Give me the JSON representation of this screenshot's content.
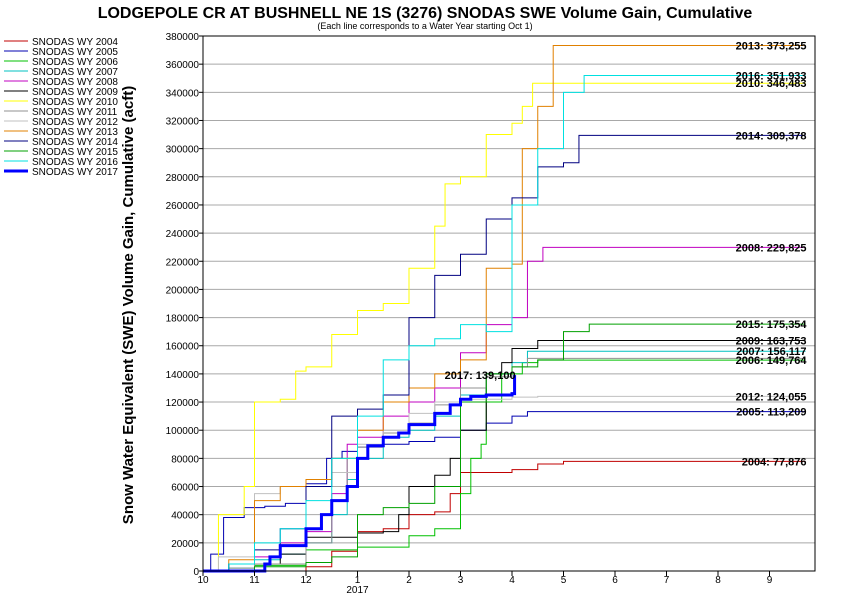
{
  "chart_data": {
    "type": "line",
    "title": "LODGEPOLE CR AT BUSHNELL NE 1S (3276) SNODAS SWE Volume Gain, Cumulative",
    "subtitle": "(Each line corresponds to a Water Year starting Oct 1)",
    "ylabel": "Snow Water Equivalent (SWE) Volume Gain, Cumulative (acft)",
    "xlabel": "",
    "ylim": [
      0,
      380000
    ],
    "yticks": [
      0,
      20000,
      40000,
      60000,
      80000,
      100000,
      120000,
      140000,
      160000,
      180000,
      200000,
      220000,
      240000,
      260000,
      280000,
      300000,
      320000,
      340000,
      360000,
      380000
    ],
    "xlim": [
      0,
      12
    ],
    "xticks": [
      {
        "x": 0,
        "label": "10"
      },
      {
        "x": 1,
        "label": "11"
      },
      {
        "x": 2,
        "label": "12"
      },
      {
        "x": 3,
        "label": "1"
      },
      {
        "x": 4,
        "label": "2"
      },
      {
        "x": 5,
        "label": "3"
      },
      {
        "x": 6,
        "label": "4"
      },
      {
        "x": 7,
        "label": "5"
      },
      {
        "x": 8,
        "label": "6"
      },
      {
        "x": 9,
        "label": "7"
      },
      {
        "x": 10,
        "label": "8"
      },
      {
        "x": 11,
        "label": "9"
      }
    ],
    "year_label": {
      "x": 3,
      "label": "2017"
    },
    "grid": "horizontal",
    "legend_position": "left",
    "series": [
      {
        "name": "SNODAS WY 2004",
        "color": "#c00000",
        "width": 1,
        "points": [
          [
            0,
            0
          ],
          [
            1,
            0
          ],
          [
            2,
            3000
          ],
          [
            2.5,
            14000
          ],
          [
            3,
            28000
          ],
          [
            3.5,
            30000
          ],
          [
            4,
            40000
          ],
          [
            4.5,
            42000
          ],
          [
            4.8,
            55000
          ],
          [
            5,
            70000
          ],
          [
            6,
            72000
          ],
          [
            6.5,
            76000
          ],
          [
            7,
            77876
          ],
          [
            11.7,
            77876
          ]
        ],
        "end_label": "2004: 77,876"
      },
      {
        "name": "SNODAS WY 2005",
        "color": "#0000b0",
        "width": 1,
        "points": [
          [
            0,
            0
          ],
          [
            0.15,
            12000
          ],
          [
            0.4,
            38000
          ],
          [
            0.8,
            45000
          ],
          [
            1.2,
            46000
          ],
          [
            1.6,
            48000
          ],
          [
            2,
            62000
          ],
          [
            2.4,
            80000
          ],
          [
            2.7,
            85000
          ],
          [
            3,
            88000
          ],
          [
            3.5,
            90000
          ],
          [
            4,
            92000
          ],
          [
            4.5,
            95000
          ],
          [
            5,
            100000
          ],
          [
            5.5,
            105000
          ],
          [
            6,
            110000
          ],
          [
            6.3,
            113209
          ],
          [
            11.7,
            113209
          ]
        ],
        "end_label": "2005: 113,209"
      },
      {
        "name": "SNODAS WY 2006",
        "color": "#00c000",
        "width": 1,
        "points": [
          [
            0,
            0
          ],
          [
            1,
            4000
          ],
          [
            2,
            15000
          ],
          [
            3,
            17000
          ],
          [
            4,
            25000
          ],
          [
            4.5,
            30000
          ],
          [
            5,
            55000
          ],
          [
            5.2,
            80000
          ],
          [
            5.4,
            90000
          ],
          [
            5.5,
            120000
          ],
          [
            5.8,
            140000
          ],
          [
            6.2,
            148000
          ],
          [
            6.5,
            149764
          ],
          [
            11.7,
            149764
          ]
        ],
        "end_label": "2006: 149,764"
      },
      {
        "name": "SNODAS WY 2007",
        "color": "#00c0c0",
        "width": 1,
        "points": [
          [
            0,
            0
          ],
          [
            0.5,
            2000
          ],
          [
            1,
            8000
          ],
          [
            1.5,
            12000
          ],
          [
            2,
            20000
          ],
          [
            2.5,
            40000
          ],
          [
            2.8,
            65000
          ],
          [
            3,
            80000
          ],
          [
            3.5,
            95000
          ],
          [
            4,
            100000
          ],
          [
            4.5,
            110000
          ],
          [
            5,
            125000
          ],
          [
            5.5,
            140000
          ],
          [
            6,
            148000
          ],
          [
            6.3,
            156117
          ],
          [
            11.7,
            156117
          ]
        ],
        "end_label": "2007: 156,117"
      },
      {
        "name": "SNODAS WY 2008",
        "color": "#c000c0",
        "width": 1,
        "points": [
          [
            0,
            0
          ],
          [
            0.5,
            5000
          ],
          [
            1,
            10000
          ],
          [
            1.5,
            20000
          ],
          [
            2,
            28000
          ],
          [
            2.5,
            55000
          ],
          [
            2.8,
            90000
          ],
          [
            3,
            95000
          ],
          [
            3.5,
            110000
          ],
          [
            4,
            120000
          ],
          [
            4.5,
            130000
          ],
          [
            5,
            155000
          ],
          [
            5.5,
            175000
          ],
          [
            6,
            180000
          ],
          [
            6.3,
            220000
          ],
          [
            6.6,
            229825
          ],
          [
            11.7,
            229825
          ]
        ],
        "end_label": "2008: 229,825"
      },
      {
        "name": "SNODAS WY 2009",
        "color": "#000000",
        "width": 1,
        "points": [
          [
            0,
            0
          ],
          [
            1,
            5000
          ],
          [
            1.5,
            12000
          ],
          [
            2,
            24000
          ],
          [
            3,
            27000
          ],
          [
            3.5,
            28000
          ],
          [
            3.8,
            40000
          ],
          [
            4,
            60000
          ],
          [
            4.5,
            68000
          ],
          [
            4.8,
            80000
          ],
          [
            5,
            100000
          ],
          [
            5.5,
            140000
          ],
          [
            5.8,
            148000
          ],
          [
            6,
            158000
          ],
          [
            6.5,
            163753
          ],
          [
            11.7,
            163753
          ]
        ],
        "end_label": "2009: 163,753"
      },
      {
        "name": "SNODAS WY 2010",
        "color": "#ffff00",
        "width": 1,
        "points": [
          [
            0,
            0
          ],
          [
            0.3,
            40000
          ],
          [
            0.8,
            60000
          ],
          [
            1,
            120000
          ],
          [
            1.5,
            122000
          ],
          [
            1.8,
            142000
          ],
          [
            2,
            145000
          ],
          [
            2.5,
            168000
          ],
          [
            3,
            185000
          ],
          [
            3.5,
            190000
          ],
          [
            4,
            215000
          ],
          [
            4.5,
            245000
          ],
          [
            4.7,
            275000
          ],
          [
            5,
            280000
          ],
          [
            5.5,
            310000
          ],
          [
            6,
            318000
          ],
          [
            6.2,
            330000
          ],
          [
            6.4,
            346483
          ],
          [
            11.7,
            346483
          ]
        ],
        "end_label": "2010: 346,483"
      },
      {
        "name": "SNODAS WY 2011",
        "color": "#909090",
        "width": 1,
        "points": [
          [
            0,
            0
          ],
          [
            0.5,
            2000
          ],
          [
            1,
            5000
          ],
          [
            2,
            20000
          ],
          [
            2.5,
            50000
          ],
          [
            2.8,
            80000
          ],
          [
            3,
            88000
          ],
          [
            3.5,
            98000
          ],
          [
            4,
            105000
          ],
          [
            4.5,
            118000
          ],
          [
            5,
            130000
          ],
          [
            5.5,
            138000
          ],
          [
            6,
            145000
          ],
          [
            6.3,
            151000
          ],
          [
            11.7,
            151000
          ]
        ],
        "end_label": ""
      },
      {
        "name": "SNODAS WY 2012",
        "color": "#c0c0c0",
        "width": 1,
        "points": [
          [
            0,
            0
          ],
          [
            0.3,
            10000
          ],
          [
            1,
            55000
          ],
          [
            1.5,
            60000
          ],
          [
            2,
            65000
          ],
          [
            2.5,
            70000
          ],
          [
            3,
            90000
          ],
          [
            3.5,
            100000
          ],
          [
            4,
            112000
          ],
          [
            4.5,
            120000
          ],
          [
            5,
            122000
          ],
          [
            6,
            123500
          ],
          [
            6.5,
            124055
          ],
          [
            11.7,
            124055
          ]
        ],
        "end_label": "2012: 124,055"
      },
      {
        "name": "SNODAS WY 2013",
        "color": "#e08000",
        "width": 1,
        "points": [
          [
            0,
            0
          ],
          [
            0.5,
            8000
          ],
          [
            1,
            50000
          ],
          [
            1.5,
            60000
          ],
          [
            2,
            65000
          ],
          [
            2.5,
            80000
          ],
          [
            3,
            100000
          ],
          [
            3.5,
            120000
          ],
          [
            4,
            130000
          ],
          [
            4.5,
            140000
          ],
          [
            5,
            150000
          ],
          [
            5.5,
            215000
          ],
          [
            6,
            218000
          ],
          [
            6.2,
            300000
          ],
          [
            6.5,
            330000
          ],
          [
            6.8,
            373255
          ],
          [
            11.7,
            373255
          ]
        ],
        "end_label": "2013: 373,255"
      },
      {
        "name": "SNODAS WY 2014",
        "color": "#000080",
        "width": 1,
        "points": [
          [
            0,
            0
          ],
          [
            0.5,
            5000
          ],
          [
            1,
            15000
          ],
          [
            1.5,
            30000
          ],
          [
            2,
            60000
          ],
          [
            2.5,
            110000
          ],
          [
            3,
            115000
          ],
          [
            3.5,
            125000
          ],
          [
            4,
            180000
          ],
          [
            4.5,
            210000
          ],
          [
            5,
            225000
          ],
          [
            5.5,
            250000
          ],
          [
            6,
            265000
          ],
          [
            6.5,
            287000
          ],
          [
            7,
            290000
          ],
          [
            7.3,
            309378
          ],
          [
            11.7,
            309378
          ]
        ],
        "end_label": "2014: 309,378"
      },
      {
        "name": "SNODAS WY 2015",
        "color": "#00a000",
        "width": 1,
        "points": [
          [
            0,
            0
          ],
          [
            1,
            3000
          ],
          [
            2,
            6000
          ],
          [
            2.5,
            10000
          ],
          [
            3,
            40000
          ],
          [
            3.5,
            45000
          ],
          [
            4,
            48000
          ],
          [
            4.5,
            60000
          ],
          [
            5,
            120000
          ],
          [
            5.5,
            140000
          ],
          [
            6,
            145000
          ],
          [
            6.5,
            150000
          ],
          [
            7,
            170000
          ],
          [
            7.5,
            175354
          ],
          [
            11.7,
            175354
          ]
        ],
        "end_label": "2015: 175,354"
      },
      {
        "name": "SNODAS WY 2016",
        "color": "#00e0e0",
        "width": 1,
        "points": [
          [
            0,
            0
          ],
          [
            0.5,
            5000
          ],
          [
            1,
            20000
          ],
          [
            1.5,
            30000
          ],
          [
            2,
            50000
          ],
          [
            2.5,
            80000
          ],
          [
            3,
            110000
          ],
          [
            3.5,
            150000
          ],
          [
            4,
            160000
          ],
          [
            4.5,
            165000
          ],
          [
            5,
            175000
          ],
          [
            5.5,
            170000
          ],
          [
            6,
            260000
          ],
          [
            6.5,
            300000
          ],
          [
            7,
            340000
          ],
          [
            7.4,
            351933
          ],
          [
            11.7,
            351933
          ]
        ],
        "end_label": "2016: 351,933"
      },
      {
        "name": "SNODAS WY 2017",
        "color": "#0000ff",
        "width": 3,
        "points": [
          [
            0,
            0
          ],
          [
            1,
            0
          ],
          [
            1.2,
            5000
          ],
          [
            1.3,
            10000
          ],
          [
            1.5,
            18000
          ],
          [
            1.8,
            18000
          ],
          [
            2,
            30000
          ],
          [
            2.3,
            40000
          ],
          [
            2.5,
            50000
          ],
          [
            2.8,
            60000
          ],
          [
            3,
            80000
          ],
          [
            3.2,
            89000
          ],
          [
            3.5,
            95000
          ],
          [
            3.8,
            98000
          ],
          [
            4,
            104000
          ],
          [
            4.3,
            104000
          ],
          [
            4.5,
            112000
          ],
          [
            4.8,
            118000
          ],
          [
            5,
            122000
          ],
          [
            5.2,
            124000
          ],
          [
            5.5,
            125000
          ],
          [
            6,
            126000
          ],
          [
            6.05,
            139100
          ]
        ],
        "end_label": "2017: 139,100"
      }
    ]
  }
}
